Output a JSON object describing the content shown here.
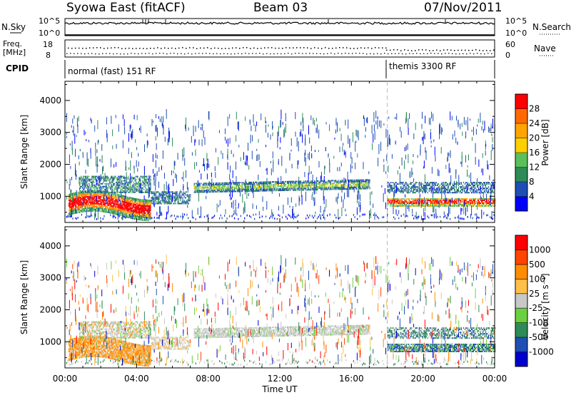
{
  "header": {
    "station": "Syowa East (fitACF)",
    "beam": "Beam 03",
    "date": "07/Nov/2011"
  },
  "panels": {
    "nsky_label": "N.Sky",
    "nsky_ticks": [
      "10^5",
      "10^0"
    ],
    "nsearch_label": "N.Search",
    "nsearch_ticks": [
      "10^5",
      "10^0"
    ],
    "freq_label_1": "Freq.",
    "freq_label_2": "[MHz]",
    "freq_ticks": [
      "18",
      "8"
    ],
    "nave_label": "Nave",
    "nave_ticks": [
      "60",
      "0"
    ],
    "cpid_label": "CPID",
    "cpid_segments": [
      {
        "label": "normal (fast) 151 RF",
        "start_h": 0,
        "end_h": 18
      },
      {
        "label": "themis 3300 RF",
        "start_h": 18,
        "end_h": 24
      }
    ]
  },
  "chart_data": [
    {
      "type": "heatmap",
      "name": "power",
      "ylabel": "Slant Range [km]",
      "xlabel": "",
      "xlim": [
        0,
        24
      ],
      "ylim": [
        180,
        4600
      ],
      "y_ticks": [
        1000,
        2000,
        3000,
        4000
      ],
      "y_tick_labels": [
        "1000",
        "2000",
        "3000",
        "4000"
      ],
      "colorbar": {
        "label": "Power [dB]",
        "levels": [
          0,
          4,
          8,
          12,
          16,
          20,
          24,
          28,
          32
        ],
        "tick_labels": [
          "4",
          "8",
          "12",
          "16",
          "20",
          "24",
          "28"
        ],
        "colors": [
          "#0000ff",
          "#1f4fb4",
          "#2e8b57",
          "#5bc05b",
          "#ffd000",
          "#ffa500",
          "#ff6a00",
          "#ff0000"
        ]
      }
    },
    {
      "type": "heatmap",
      "name": "velocity",
      "ylabel": "Slant Range [km]",
      "xlabel": "Time UT",
      "xlim": [
        0,
        24
      ],
      "ylim": [
        180,
        4600
      ],
      "x_ticks": [
        0,
        4,
        8,
        12,
        16,
        20,
        24
      ],
      "x_tick_labels": [
        "00:00",
        "04:00",
        "08:00",
        "12:00",
        "16:00",
        "20:00",
        "00:00"
      ],
      "y_ticks": [
        1000,
        2000,
        3000,
        4000
      ],
      "y_tick_labels": [
        "1000",
        "2000",
        "3000",
        "4000"
      ],
      "colorbar": {
        "label": "Velocity [m s⁻¹]",
        "tick_labels": [
          "1000",
          "500",
          "100",
          "25",
          "-25",
          "-100",
          "-500",
          "-1000"
        ],
        "colors": [
          "#0000cd",
          "#1f4fb4",
          "#2e8b57",
          "#6ad040",
          "#c8c8c8",
          "#ffc04a",
          "#ff8c00",
          "#ff4500",
          "#ff0000"
        ]
      }
    }
  ]
}
